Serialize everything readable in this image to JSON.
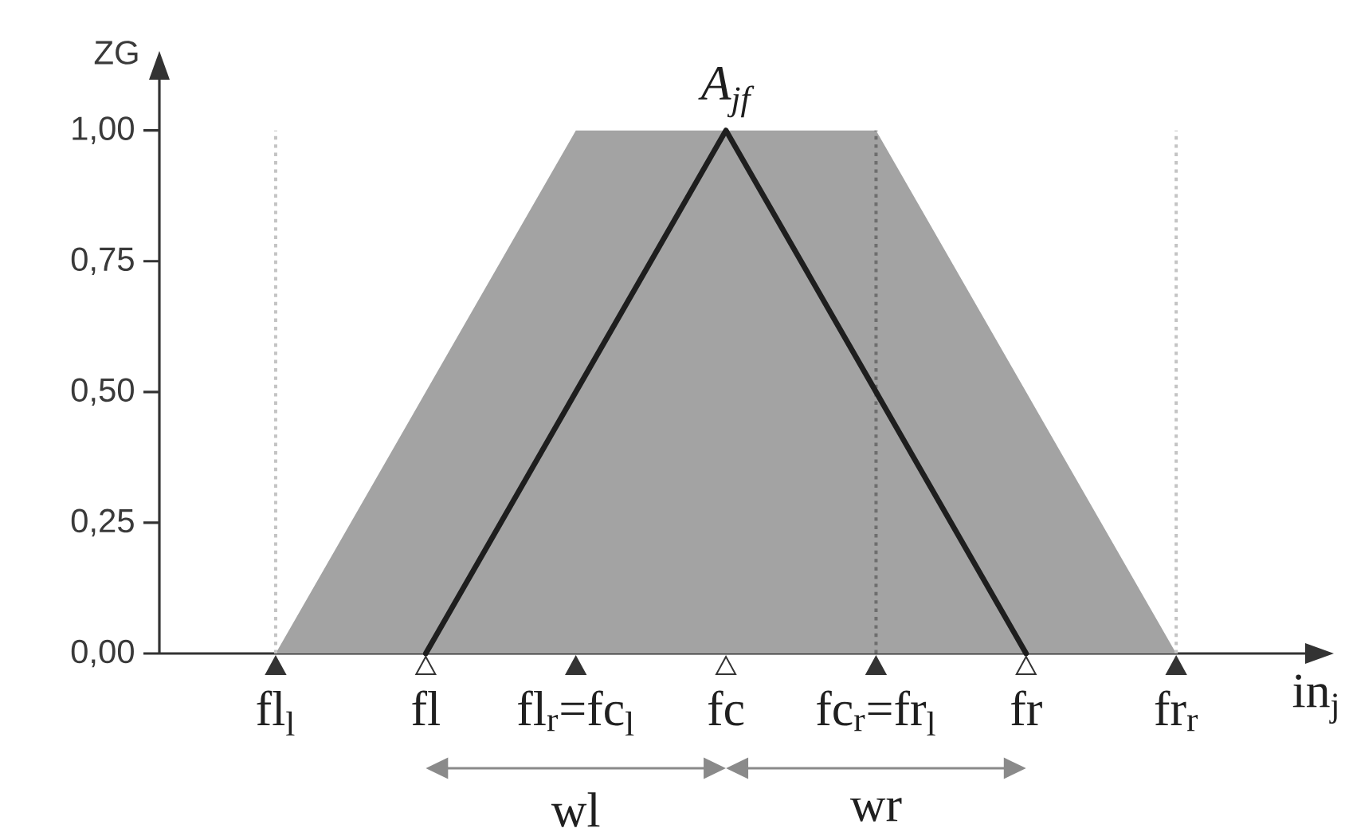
{
  "chart_data": {
    "type": "area",
    "xlabel": "in$_{j}$",
    "ylabel": "ZG",
    "categories": [
      "fl$_{l}$",
      "fl",
      "fl$_{r}$=fc$_{l}$",
      "fc",
      "fc$_{r}$=fr$_{l}$",
      "fr",
      "fr$_{r}$"
    ],
    "series": [
      {
        "color": "#a3a3a3",
        "values": [
          0,
          0.5,
          1,
          1,
          1,
          0.5,
          0
        ]
      },
      {
        "type": "line",
        "name": "A$_{jf}$",
        "color": "#1e1e1e",
        "values": [
          null,
          0,
          0.5,
          1,
          0.5,
          0,
          null
        ]
      }
    ],
    "ylim": [
      0,
      1.1
    ],
    "yticks": [
      {
        "value": 0,
        "label": "0,00"
      },
      {
        "value": 0.25,
        "label": "0,25"
      },
      {
        "value": 0.5,
        "label": "0,50"
      },
      {
        "value": 0.75,
        "label": "0,75"
      },
      {
        "value": 1,
        "label": "1,00"
      }
    ],
    "annotations": [
      "wl",
      "wr"
    ],
    "ref_lines": [
      {
        "axis": "x",
        "value": "fl$_{l}$",
        "color": "#c4c4c4",
        "line_style": "dotted"
      },
      {
        "axis": "x",
        "value": "fc$_{r}$=fr$_{l}$",
        "color": "#6e6e6e",
        "line_style": "dotted"
      },
      {
        "axis": "x",
        "value": "fr$_{r}$",
        "color": "#c4c4c4",
        "line_style": "dotted"
      }
    ]
  }
}
